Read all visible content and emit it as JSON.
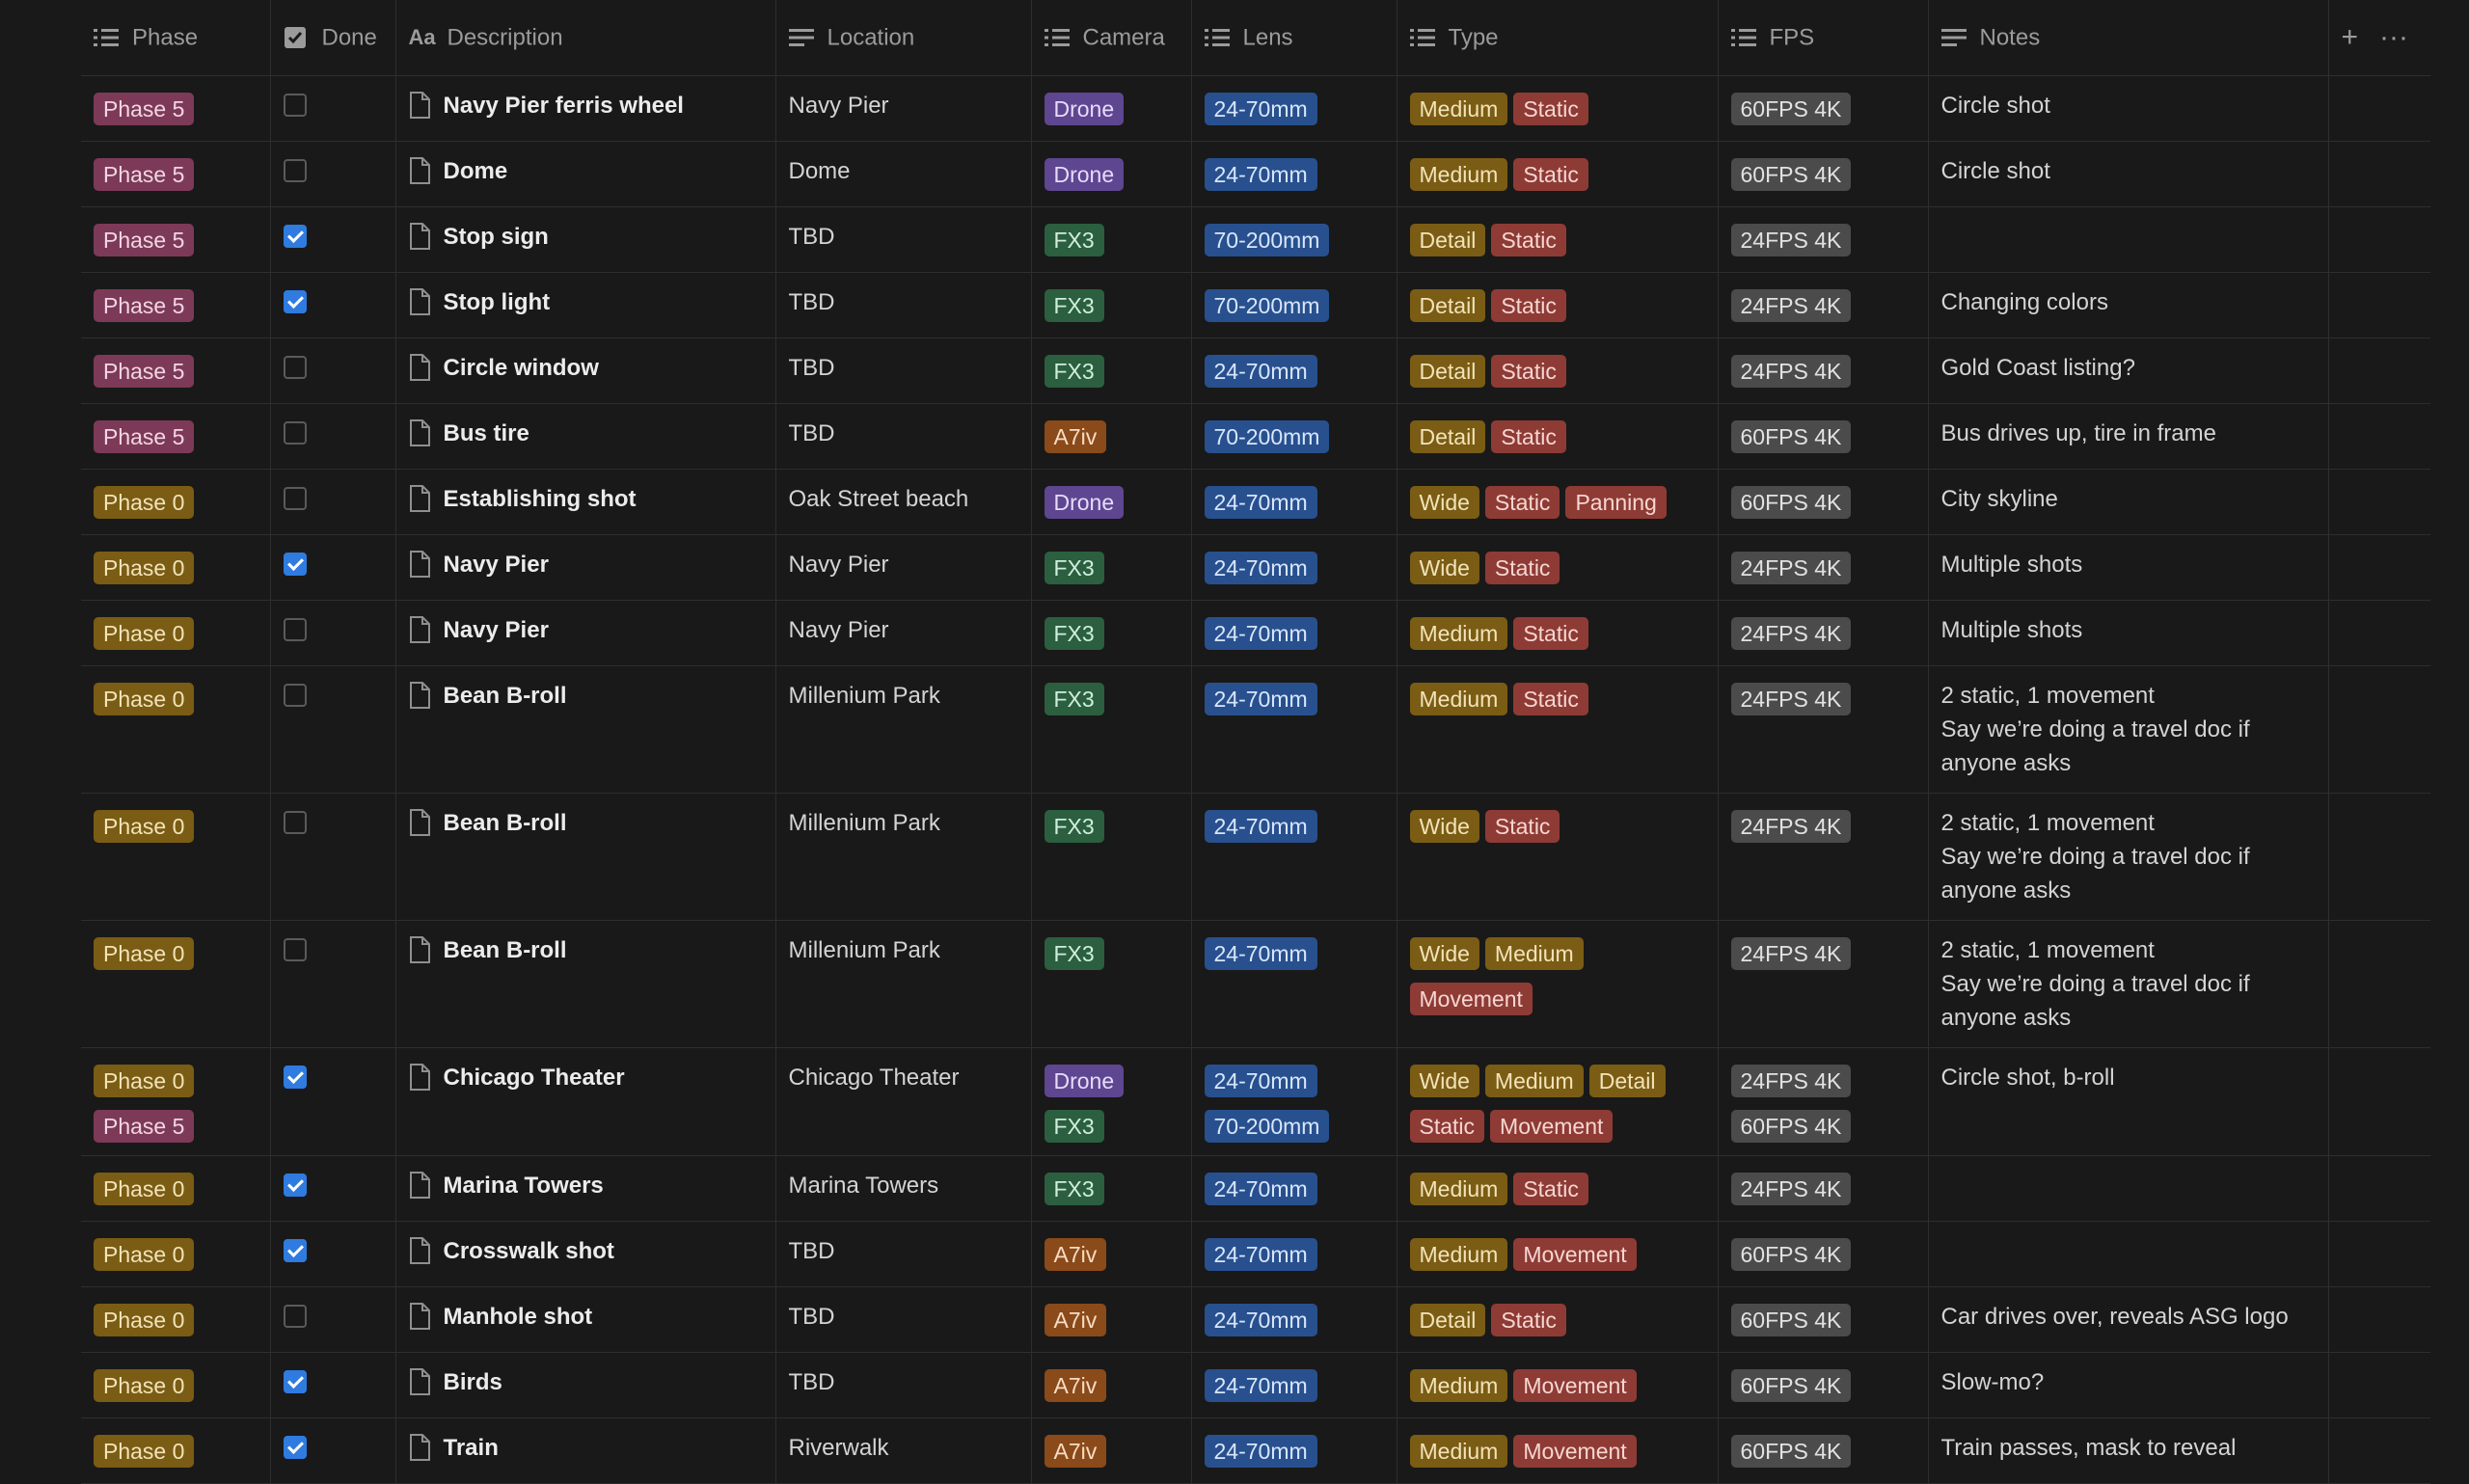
{
  "columns": {
    "phase": "Phase",
    "done": "Done",
    "description": "Description",
    "location": "Location",
    "camera": "Camera",
    "lens": "Lens",
    "type": "Type",
    "fps": "FPS",
    "notes": "Notes"
  },
  "header_actions": {
    "add": "+",
    "more": "···"
  },
  "colors": {
    "Phase 5": "mauve",
    "Phase 0": "brown",
    "Drone": "purple",
    "FX3": "green",
    "A7iv": "orange",
    "24-70mm": "blue",
    "70-200mm": "blue",
    "Medium": "brown",
    "Detail": "brown",
    "Wide": "brown",
    "Static": "red",
    "Panning": "red",
    "Movement": "red",
    "60FPS 4K": "gray",
    "24FPS 4K": "gray"
  },
  "rows": [
    {
      "phase": [
        "Phase 5"
      ],
      "done": false,
      "description": "Navy Pier ferris wheel",
      "location": "Navy Pier",
      "camera": [
        "Drone"
      ],
      "lens": [
        "24-70mm"
      ],
      "type": [
        "Medium",
        "Static"
      ],
      "fps": [
        "60FPS 4K"
      ],
      "notes": [
        "Circle shot"
      ]
    },
    {
      "phase": [
        "Phase 5"
      ],
      "done": false,
      "description": "Dome",
      "location": "Dome",
      "camera": [
        "Drone"
      ],
      "lens": [
        "24-70mm"
      ],
      "type": [
        "Medium",
        "Static"
      ],
      "fps": [
        "60FPS 4K"
      ],
      "notes": [
        "Circle shot"
      ]
    },
    {
      "phase": [
        "Phase 5"
      ],
      "done": true,
      "description": "Stop sign",
      "location": "TBD",
      "camera": [
        "FX3"
      ],
      "lens": [
        "70-200mm"
      ],
      "type": [
        "Detail",
        "Static"
      ],
      "fps": [
        "24FPS 4K"
      ],
      "notes": []
    },
    {
      "phase": [
        "Phase 5"
      ],
      "done": true,
      "description": "Stop light",
      "location": "TBD",
      "camera": [
        "FX3"
      ],
      "lens": [
        "70-200mm"
      ],
      "type": [
        "Detail",
        "Static"
      ],
      "fps": [
        "24FPS 4K"
      ],
      "notes": [
        "Changing colors"
      ]
    },
    {
      "phase": [
        "Phase 5"
      ],
      "done": false,
      "description": "Circle window",
      "location": "TBD",
      "camera": [
        "FX3"
      ],
      "lens": [
        "24-70mm"
      ],
      "type": [
        "Detail",
        "Static"
      ],
      "fps": [
        "24FPS 4K"
      ],
      "notes": [
        "Gold Coast listing?"
      ]
    },
    {
      "phase": [
        "Phase 5"
      ],
      "done": false,
      "description": "Bus tire",
      "location": "TBD",
      "camera": [
        "A7iv"
      ],
      "lens": [
        "70-200mm"
      ],
      "type": [
        "Detail",
        "Static"
      ],
      "fps": [
        "60FPS 4K"
      ],
      "notes": [
        "Bus drives up, tire in frame"
      ]
    },
    {
      "phase": [
        "Phase 0"
      ],
      "done": false,
      "description": "Establishing shot",
      "location": "Oak Street beach",
      "camera": [
        "Drone"
      ],
      "lens": [
        "24-70mm"
      ],
      "type": [
        "Wide",
        "Static",
        "Panning"
      ],
      "fps": [
        "60FPS 4K"
      ],
      "notes": [
        "City skyline"
      ]
    },
    {
      "phase": [
        "Phase 0"
      ],
      "done": true,
      "description": "Navy Pier",
      "location": "Navy Pier",
      "camera": [
        "FX3"
      ],
      "lens": [
        "24-70mm"
      ],
      "type": [
        "Wide",
        "Static"
      ],
      "fps": [
        "24FPS 4K"
      ],
      "notes": [
        "Multiple shots"
      ]
    },
    {
      "phase": [
        "Phase 0"
      ],
      "done": false,
      "description": "Navy Pier",
      "location": "Navy Pier",
      "camera": [
        "FX3"
      ],
      "lens": [
        "24-70mm"
      ],
      "type": [
        "Medium",
        "Static"
      ],
      "fps": [
        "24FPS 4K"
      ],
      "notes": [
        "Multiple shots"
      ]
    },
    {
      "phase": [
        "Phase 0"
      ],
      "done": false,
      "description": "Bean B-roll",
      "location": "Millenium Park",
      "camera": [
        "FX3"
      ],
      "lens": [
        "24-70mm"
      ],
      "type": [
        "Medium",
        "Static"
      ],
      "fps": [
        "24FPS 4K"
      ],
      "notes": [
        "2 static, 1 movement",
        "Say we’re doing a travel doc if anyone asks"
      ]
    },
    {
      "phase": [
        "Phase 0"
      ],
      "done": false,
      "description": "Bean B-roll",
      "location": "Millenium Park",
      "camera": [
        "FX3"
      ],
      "lens": [
        "24-70mm"
      ],
      "type": [
        "Wide",
        "Static"
      ],
      "fps": [
        "24FPS 4K"
      ],
      "notes": [
        "2 static, 1 movement",
        "Say we’re doing a travel doc if anyone asks"
      ]
    },
    {
      "phase": [
        "Phase 0"
      ],
      "done": false,
      "description": "Bean B-roll",
      "location": "Millenium Park",
      "camera": [
        "FX3"
      ],
      "lens": [
        "24-70mm"
      ],
      "type": [
        "Wide",
        "Medium",
        "Movement"
      ],
      "fps": [
        "24FPS 4K"
      ],
      "notes": [
        "2 static, 1 movement",
        "Say we’re doing a travel doc if anyone asks"
      ]
    },
    {
      "phase": [
        "Phase 0",
        "Phase 5"
      ],
      "done": true,
      "description": "Chicago Theater",
      "location": "Chicago Theater",
      "camera": [
        "Drone",
        "FX3"
      ],
      "lens": [
        "24-70mm",
        "70-200mm"
      ],
      "type": [
        "Wide",
        "Medium",
        "Detail",
        "Static",
        "Movement"
      ],
      "fps": [
        "24FPS 4K",
        "60FPS 4K"
      ],
      "notes": [
        "Circle shot, b-roll"
      ]
    },
    {
      "phase": [
        "Phase 0"
      ],
      "done": true,
      "description": "Marina Towers",
      "location": "Marina Towers",
      "camera": [
        "FX3"
      ],
      "lens": [
        "24-70mm"
      ],
      "type": [
        "Medium",
        "Static"
      ],
      "fps": [
        "24FPS 4K"
      ],
      "notes": []
    },
    {
      "phase": [
        "Phase 0"
      ],
      "done": true,
      "description": "Crosswalk shot",
      "location": "TBD",
      "camera": [
        "A7iv"
      ],
      "lens": [
        "24-70mm"
      ],
      "type": [
        "Medium",
        "Movement"
      ],
      "fps": [
        "60FPS 4K"
      ],
      "notes": []
    },
    {
      "phase": [
        "Phase 0"
      ],
      "done": false,
      "description": "Manhole shot",
      "location": "TBD",
      "camera": [
        "A7iv"
      ],
      "lens": [
        "24-70mm"
      ],
      "type": [
        "Detail",
        "Static"
      ],
      "fps": [
        "60FPS 4K"
      ],
      "notes": [
        "Car drives over, reveals ASG logo"
      ]
    },
    {
      "phase": [
        "Phase 0"
      ],
      "done": true,
      "description": "Birds",
      "location": "TBD",
      "camera": [
        "A7iv"
      ],
      "lens": [
        "24-70mm"
      ],
      "type": [
        "Medium",
        "Movement"
      ],
      "fps": [
        "60FPS 4K"
      ],
      "notes": [
        "Slow-mo?"
      ]
    },
    {
      "phase": [
        "Phase 0"
      ],
      "done": true,
      "description": "Train",
      "location": "Riverwalk",
      "camera": [
        "A7iv"
      ],
      "lens": [
        "24-70mm"
      ],
      "type": [
        "Medium",
        "Movement"
      ],
      "fps": [
        "60FPS 4K"
      ],
      "notes": [
        "Train passes, mask to reveal"
      ]
    }
  ]
}
